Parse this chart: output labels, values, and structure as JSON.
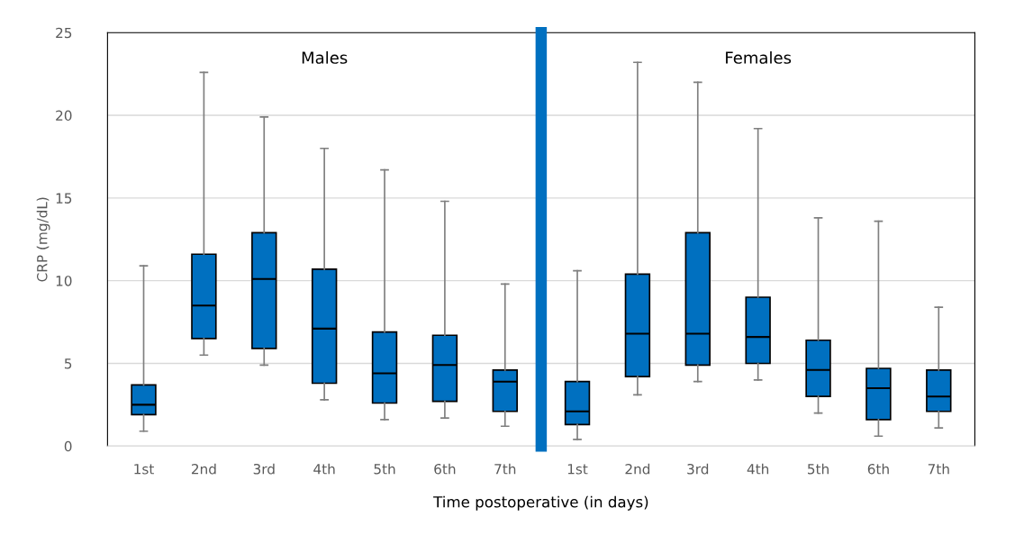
{
  "chart_data": [
    {
      "type": "box",
      "title": "Males",
      "ylabel": "CRP (mg/dL)",
      "xlabel": "Time postoperative (in days)",
      "categories": [
        "1st",
        "2nd",
        "3rd",
        "4th",
        "5th",
        "6th",
        "7th"
      ],
      "ylim": [
        0,
        25
      ],
      "yticks": [
        0,
        5,
        10,
        15,
        20,
        25
      ],
      "grid": "y",
      "series": [
        {
          "color": "#0070c0",
          "boxes": [
            {
              "low": 0.9,
              "q1": 1.9,
              "median": 2.5,
              "q3": 3.7,
              "high": 10.9
            },
            {
              "low": 5.5,
              "q1": 6.5,
              "median": 8.5,
              "q3": 11.6,
              "high": 22.6
            },
            {
              "low": 4.9,
              "q1": 5.9,
              "median": 10.1,
              "q3": 12.9,
              "high": 19.9
            },
            {
              "low": 2.8,
              "q1": 3.8,
              "median": 7.1,
              "q3": 10.7,
              "high": 18.0
            },
            {
              "low": 1.6,
              "q1": 2.6,
              "median": 4.4,
              "q3": 6.9,
              "high": 16.7
            },
            {
              "low": 1.7,
              "q1": 2.7,
              "median": 4.9,
              "q3": 6.7,
              "high": 14.8
            },
            {
              "low": 1.2,
              "q1": 2.1,
              "median": 3.9,
              "q3": 4.6,
              "high": 9.8
            }
          ]
        }
      ]
    },
    {
      "type": "box",
      "title": "Females",
      "categories": [
        "1st",
        "2nd",
        "3rd",
        "4th",
        "5th",
        "6th",
        "7th"
      ],
      "ylim": [
        0,
        25
      ],
      "yticks": [
        0,
        5,
        10,
        15,
        20,
        25
      ],
      "grid": "y",
      "tick_labels": "x",
      "series": [
        {
          "color": "#0070c0",
          "boxes": [
            {
              "low": 0.4,
              "q1": 1.3,
              "median": 2.1,
              "q3": 3.9,
              "high": 10.6
            },
            {
              "low": 3.1,
              "q1": 4.2,
              "median": 6.8,
              "q3": 10.4,
              "high": 23.2
            },
            {
              "low": 3.9,
              "q1": 4.9,
              "median": 6.8,
              "q3": 12.9,
              "high": 22.0
            },
            {
              "low": 4.0,
              "q1": 5.0,
              "median": 6.6,
              "q3": 9.0,
              "high": 19.2
            },
            {
              "low": 2.0,
              "q1": 3.0,
              "median": 4.6,
              "q3": 6.4,
              "high": 13.8
            },
            {
              "low": 0.6,
              "q1": 1.6,
              "median": 3.5,
              "q3": 4.7,
              "high": 13.6
            },
            {
              "low": 1.1,
              "q1": 2.1,
              "median": 3.0,
              "q3": 4.6,
              "high": 8.4
            }
          ]
        }
      ]
    }
  ]
}
